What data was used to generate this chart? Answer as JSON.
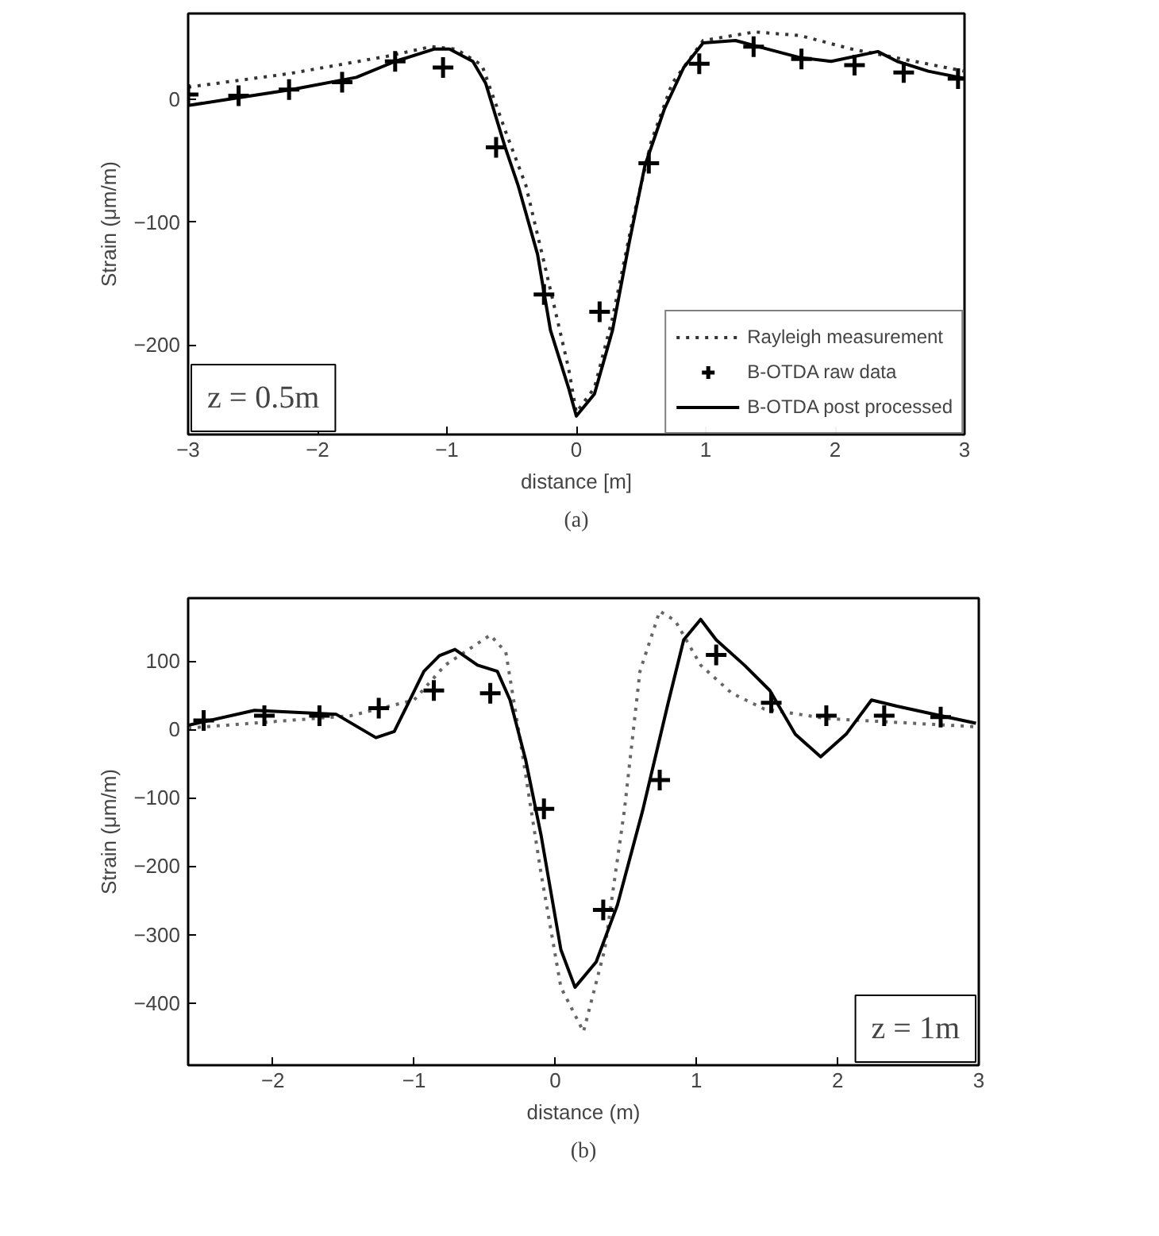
{
  "chart_data": [
    {
      "type": "line",
      "title": "(a)",
      "xlabel": "distance [m]",
      "ylabel": "Strain (μm/m)",
      "xlim": [
        -3,
        3
      ],
      "ylim": [
        -273,
        70
      ],
      "xticks": [
        -3,
        -2,
        -1,
        0,
        1,
        2,
        3
      ],
      "yticks": [
        -200,
        -100,
        0
      ],
      "legend": "bottom right",
      "annotations": [
        "z = 0.5m"
      ],
      "series": [
        {
          "name": "Rayleigh measurement",
          "line_style": "dotted",
          "color": "#333333",
          "x": [
            -3,
            -2.22,
            -1.47,
            -1.12,
            -0.93,
            -0.73,
            -0.54,
            -0.39,
            -0.24,
            -0.06,
            0,
            0.14,
            0.28,
            0.43,
            0.58,
            0.74,
            0.98,
            1.38,
            1.73,
            2.13,
            2.47,
            3
          ],
          "values": [
            10,
            21,
            35,
            43,
            41,
            28,
            -28,
            -70,
            -137,
            -219,
            -255,
            -235,
            -178,
            -101,
            -34,
            13,
            48,
            55,
            52,
            41,
            34,
            23
          ]
        },
        {
          "name": "B-OTDA raw data",
          "type": "scatter",
          "marker": "cross",
          "color": "#000000",
          "x": [
            -3,
            -2.61,
            -2.22,
            -1.81,
            -1.4,
            -1.03,
            -0.62,
            -0.25,
            0.18,
            0.56,
            0.95,
            1.37,
            1.74,
            2.15,
            2.53,
            2.95
          ],
          "values": [
            4,
            3,
            8,
            14,
            31,
            26,
            -39,
            -159,
            -173,
            -52,
            29,
            43,
            33,
            28,
            22,
            17
          ]
        },
        {
          "name": "B-OTDA post processed",
          "line_style": "solid",
          "color": "#000000",
          "x": [
            -3,
            -2.7,
            -2.2,
            -1.7,
            -1.4,
            -1.1,
            -0.98,
            -0.8,
            -0.7,
            -0.55,
            -0.45,
            -0.3,
            -0.2,
            -0.06,
            0,
            0.14,
            0.28,
            0.41,
            0.53,
            0.68,
            0.83,
            0.98,
            1.23,
            1.48,
            1.73,
            1.97,
            2.33,
            2.48,
            2.72,
            3
          ],
          "values": [
            -5,
            0,
            8,
            18,
            31,
            41,
            41,
            31,
            13,
            -39,
            -70,
            -126,
            -188,
            -235,
            -258,
            -240,
            -188,
            -116,
            -54,
            -8,
            26,
            46,
            48,
            41,
            34,
            31,
            39,
            31,
            23,
            17
          ]
        }
      ]
    },
    {
      "type": "line",
      "title": "(b)",
      "xlabel": "distance (m)",
      "ylabel": "Strain (μm/m)",
      "xlim": [
        -2.6,
        3
      ],
      "ylim": [
        -491,
        192
      ],
      "xticks": [
        -2,
        -1,
        0,
        1,
        2,
        3
      ],
      "yticks": [
        -400,
        -300,
        -200,
        -100,
        0,
        100
      ],
      "annotations": [
        "z = 1m"
      ],
      "series": [
        {
          "line_style": "dotted",
          "color": "#666666",
          "x": [
            -2.6,
            -1.45,
            -1.0,
            -0.78,
            -0.46,
            -0.35,
            -0.24,
            -0.1,
            0.04,
            0.2,
            0.35,
            0.49,
            0.6,
            0.74,
            0.85,
            1.03,
            1.25,
            1.48,
            1.92,
            2.98
          ],
          "values": [
            2,
            20,
            43,
            94,
            138,
            113,
            -26,
            -211,
            -377,
            -442,
            -322,
            -118,
            85,
            173,
            159,
            94,
            53,
            30,
            16,
            4
          ]
        },
        {
          "type": "scatter",
          "marker": "cross",
          "color": "#000000",
          "x": [
            -2.49,
            -2.06,
            -1.67,
            -1.25,
            -0.86,
            -0.46,
            -0.08,
            0.34,
            0.74,
            1.14,
            1.53,
            1.92,
            2.33,
            2.73
          ],
          "values": [
            13,
            20,
            20,
            31,
            57,
            53,
            -116,
            -264,
            -74,
            109,
            39,
            20,
            20,
            18
          ]
        },
        {
          "line_style": "solid",
          "color": "#000000",
          "x": [
            -2.6,
            -2.13,
            -1.55,
            -1.27,
            -1.14,
            -0.93,
            -0.82,
            -0.71,
            -0.55,
            -0.41,
            -0.32,
            -0.21,
            -0.1,
            0.04,
            0.14,
            0.29,
            0.44,
            0.62,
            0.8,
            0.91,
            1.03,
            1.14,
            1.34,
            1.52,
            1.7,
            1.88,
            2.06,
            2.24,
            2.42,
            2.73,
            2.98
          ],
          "values": [
            6,
            28,
            22,
            -12,
            -3,
            85,
            108,
            117,
            94,
            85,
            43,
            -44,
            -155,
            -322,
            -377,
            -340,
            -257,
            -118,
            39,
            131,
            161,
            131,
            94,
            57,
            -7,
            -40,
            -7,
            43,
            34,
            20,
            9
          ]
        }
      ]
    }
  ]
}
